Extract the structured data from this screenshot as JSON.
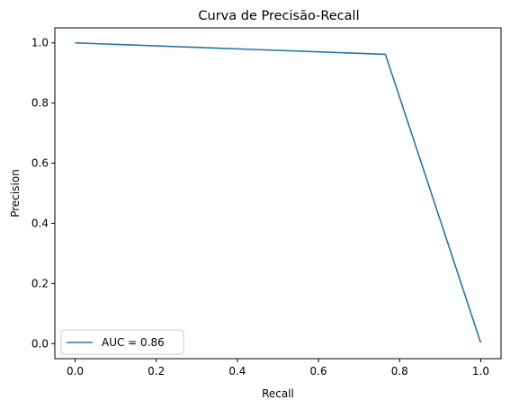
{
  "chart_data": {
    "type": "line",
    "title": "Curva de Precisão-Recall",
    "xlabel": "Recall",
    "ylabel": "Precision",
    "xlim": [
      -0.05,
      1.05
    ],
    "ylim": [
      -0.05,
      1.05
    ],
    "xticks": [
      0.0,
      0.2,
      0.4,
      0.6,
      0.8,
      1.0
    ],
    "xtick_labels": [
      "0.0",
      "0.2",
      "0.4",
      "0.6",
      "0.8",
      "1.0"
    ],
    "yticks": [
      0.0,
      0.2,
      0.4,
      0.6,
      0.8,
      1.0
    ],
    "ytick_labels": [
      "0.0",
      "0.2",
      "0.4",
      "0.6",
      "0.8",
      "1.0"
    ],
    "grid": false,
    "legend_position": "lower-left",
    "series": [
      {
        "name": "AUC = 0.86",
        "color": "#1f77b4",
        "x": [
          0.0,
          0.765,
          1.0
        ],
        "y": [
          1.0,
          0.962,
          0.003
        ]
      }
    ]
  }
}
